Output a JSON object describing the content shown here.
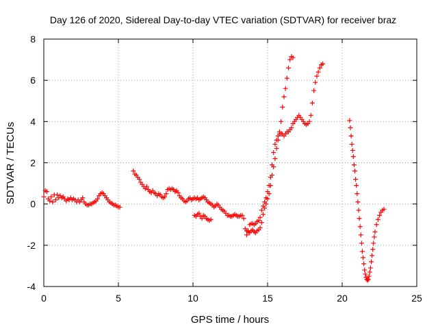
{
  "chart_data": {
    "type": "scatter",
    "title": "Day 126 of 2020, Sidereal Day-to-day VTEC variation (SDTVAR) for receiver braz",
    "xlabel": "GPS time / hours",
    "ylabel": "SDTVAR / TECUs",
    "xlim": [
      0,
      25
    ],
    "ylim": [
      -4,
      8
    ],
    "x_ticks": [
      0,
      5,
      10,
      15,
      20,
      25
    ],
    "y_ticks": [
      -4,
      -2,
      0,
      2,
      4,
      6,
      8
    ],
    "grid": true,
    "marker": "plus",
    "color": "#ff0000",
    "series": [
      {
        "name": "segment-1",
        "points": [
          [
            0.0,
            0.35
          ],
          [
            0.1,
            0.65
          ],
          [
            0.2,
            0.6
          ],
          [
            0.3,
            0.25
          ],
          [
            0.4,
            0.15
          ],
          [
            0.5,
            0.35
          ],
          [
            0.6,
            0.1
          ],
          [
            0.7,
            0.45
          ],
          [
            0.8,
            0.2
          ],
          [
            0.9,
            0.45
          ],
          [
            1.0,
            0.3
          ],
          [
            1.1,
            0.4
          ],
          [
            1.2,
            0.3
          ],
          [
            1.3,
            0.35
          ],
          [
            1.4,
            0.25
          ],
          [
            1.5,
            0.15
          ],
          [
            1.6,
            0.25
          ],
          [
            1.7,
            0.2
          ],
          [
            1.8,
            0.3
          ],
          [
            1.9,
            0.2
          ],
          [
            2.0,
            0.25
          ],
          [
            2.1,
            0.2
          ],
          [
            2.2,
            0.1
          ],
          [
            2.3,
            0.2
          ],
          [
            2.4,
            0.1
          ],
          [
            2.5,
            0.2
          ],
          [
            2.6,
            0.3
          ],
          [
            2.7,
            0.1
          ],
          [
            2.8,
            0.0
          ],
          [
            2.9,
            -0.05
          ],
          [
            3.0,
            -0.05
          ],
          [
            3.1,
            0.0
          ],
          [
            3.2,
            0.0
          ],
          [
            3.3,
            0.05
          ],
          [
            3.4,
            0.1
          ],
          [
            3.5,
            0.15
          ],
          [
            3.6,
            0.25
          ],
          [
            3.7,
            0.4
          ],
          [
            3.8,
            0.5
          ],
          [
            3.9,
            0.55
          ],
          [
            4.0,
            0.5
          ],
          [
            4.1,
            0.4
          ],
          [
            4.2,
            0.3
          ],
          [
            4.3,
            0.2
          ],
          [
            4.4,
            0.1
          ],
          [
            4.5,
            0.05
          ],
          [
            4.6,
            0.0
          ],
          [
            4.7,
            -0.05
          ],
          [
            4.8,
            -0.05
          ],
          [
            4.9,
            -0.1
          ],
          [
            5.0,
            -0.15
          ],
          [
            5.1,
            -0.15
          ]
        ]
      },
      {
        "name": "segment-2",
        "points": [
          [
            6.0,
            1.6
          ],
          [
            6.1,
            1.45
          ],
          [
            6.2,
            1.4
          ],
          [
            6.3,
            1.3
          ],
          [
            6.4,
            1.2
          ],
          [
            6.5,
            1.05
          ],
          [
            6.6,
            0.95
          ],
          [
            6.7,
            0.85
          ],
          [
            6.8,
            0.75
          ],
          [
            6.9,
            0.85
          ],
          [
            7.0,
            0.7
          ],
          [
            7.1,
            0.6
          ],
          [
            7.2,
            0.55
          ],
          [
            7.3,
            0.65
          ],
          [
            7.4,
            0.55
          ],
          [
            7.5,
            0.5
          ],
          [
            7.6,
            0.4
          ],
          [
            7.7,
            0.5
          ],
          [
            7.8,
            0.45
          ],
          [
            7.9,
            0.35
          ],
          [
            8.0,
            0.3
          ],
          [
            8.1,
            0.35
          ],
          [
            8.2,
            0.5
          ],
          [
            8.3,
            0.7
          ],
          [
            8.4,
            0.75
          ],
          [
            8.5,
            0.7
          ],
          [
            8.6,
            0.75
          ],
          [
            8.7,
            0.7
          ],
          [
            8.8,
            0.6
          ],
          [
            8.9,
            0.65
          ],
          [
            9.0,
            0.55
          ],
          [
            9.1,
            0.4
          ],
          [
            9.2,
            0.3
          ],
          [
            9.3,
            0.25
          ],
          [
            9.4,
            0.15
          ],
          [
            9.5,
            0.1
          ],
          [
            9.6,
            0.15
          ],
          [
            9.7,
            0.25
          ],
          [
            9.8,
            0.3
          ],
          [
            9.9,
            0.2
          ],
          [
            10.0,
            0.25
          ],
          [
            10.1,
            0.3
          ],
          [
            10.2,
            0.25
          ],
          [
            10.3,
            0.3
          ],
          [
            10.4,
            0.2
          ],
          [
            10.5,
            0.25
          ],
          [
            10.6,
            0.3
          ],
          [
            10.7,
            0.35
          ],
          [
            10.8,
            0.3
          ],
          [
            10.9,
            0.2
          ],
          [
            11.0,
            0.1
          ],
          [
            11.1,
            0.05
          ],
          [
            11.2,
            0.0
          ],
          [
            11.3,
            -0.05
          ],
          [
            11.4,
            -0.15
          ],
          [
            11.5,
            -0.1
          ],
          [
            11.6,
            0.0
          ],
          [
            11.7,
            -0.05
          ],
          [
            11.8,
            -0.15
          ],
          [
            11.9,
            -0.25
          ],
          [
            12.0,
            -0.3
          ],
          [
            12.1,
            -0.35
          ],
          [
            12.2,
            -0.45
          ],
          [
            12.3,
            -0.55
          ],
          [
            12.4,
            -0.55
          ],
          [
            12.5,
            -0.6
          ],
          [
            12.6,
            -0.6
          ],
          [
            12.7,
            -0.55
          ],
          [
            12.8,
            -0.5
          ],
          [
            12.9,
            -0.55
          ],
          [
            13.0,
            -0.6
          ],
          [
            13.1,
            -0.6
          ],
          [
            13.2,
            -0.55
          ],
          [
            13.3,
            -0.55
          ],
          [
            13.4,
            -0.7
          ],
          [
            13.5,
            -1.2
          ],
          [
            13.6,
            -1.5
          ],
          [
            13.7,
            -1.3
          ],
          [
            13.8,
            -1.0
          ],
          [
            13.9,
            -0.95
          ],
          [
            14.0,
            -0.95
          ],
          [
            14.1,
            -1.0
          ],
          [
            14.2,
            -0.95
          ],
          [
            14.3,
            -0.85
          ],
          [
            14.4,
            -0.8
          ],
          [
            14.5,
            -0.65
          ],
          [
            14.6,
            -0.3
          ],
          [
            14.7,
            -0.1
          ],
          [
            14.8,
            0.1
          ],
          [
            14.9,
            0.3
          ],
          [
            15.0,
            0.6
          ],
          [
            15.1,
            0.9
          ],
          [
            15.2,
            1.3
          ],
          [
            15.3,
            1.9
          ],
          [
            15.4,
            2.5
          ],
          [
            15.5,
            2.9
          ],
          [
            15.6,
            3.1
          ],
          [
            15.7,
            3.3
          ],
          [
            15.8,
            3.4
          ],
          [
            15.9,
            3.4
          ],
          [
            16.0,
            3.4
          ],
          [
            16.1,
            3.3
          ],
          [
            16.2,
            3.4
          ],
          [
            16.3,
            3.5
          ],
          [
            16.4,
            3.5
          ],
          [
            16.5,
            3.6
          ],
          [
            16.6,
            3.7
          ],
          [
            16.7,
            3.9
          ],
          [
            16.8,
            4.0
          ],
          [
            16.9,
            4.1
          ],
          [
            17.0,
            4.2
          ],
          [
            17.1,
            4.3
          ],
          [
            17.2,
            4.2
          ],
          [
            17.3,
            4.1
          ],
          [
            17.4,
            4.0
          ],
          [
            17.5,
            3.9
          ],
          [
            17.6,
            3.85
          ],
          [
            17.7,
            3.9
          ],
          [
            17.8,
            4.0
          ],
          [
            17.9,
            4.3
          ],
          [
            18.0,
            4.9
          ],
          [
            18.1,
            5.5
          ],
          [
            18.2,
            5.9
          ],
          [
            18.3,
            6.2
          ],
          [
            18.4,
            6.4
          ],
          [
            18.5,
            6.6
          ],
          [
            18.6,
            6.75
          ],
          [
            18.7,
            6.8
          ]
        ]
      },
      {
        "name": "segment-3",
        "points": [
          [
            10.1,
            -0.55
          ],
          [
            10.2,
            -0.6
          ],
          [
            10.3,
            -0.5
          ],
          [
            10.4,
            -0.45
          ],
          [
            10.5,
            -0.6
          ],
          [
            10.6,
            -0.7
          ],
          [
            10.7,
            -0.55
          ],
          [
            10.8,
            -0.6
          ],
          [
            10.9,
            -0.7
          ],
          [
            11.0,
            -0.75
          ],
          [
            11.1,
            -0.8
          ],
          [
            11.2,
            -0.75
          ]
        ]
      },
      {
        "name": "segment-4",
        "points": [
          [
            13.6,
            -1.3
          ],
          [
            13.7,
            -1.35
          ],
          [
            13.8,
            -1.4
          ],
          [
            13.9,
            -1.3
          ],
          [
            14.0,
            -1.25
          ],
          [
            14.1,
            -1.35
          ],
          [
            14.2,
            -1.4
          ],
          [
            14.3,
            -1.3
          ],
          [
            14.4,
            -1.25
          ],
          [
            14.5,
            -1.15
          ],
          [
            14.6,
            -0.9
          ],
          [
            14.7,
            -0.5
          ],
          [
            14.8,
            -0.2
          ],
          [
            14.9,
            0.0
          ],
          [
            15.0,
            0.25
          ],
          [
            15.1,
            0.5
          ],
          [
            15.2,
            0.9
          ],
          [
            15.3,
            1.4
          ],
          [
            15.4,
            1.8
          ],
          [
            15.5,
            2.2
          ],
          [
            15.6,
            2.7
          ],
          [
            15.7,
            3.1
          ],
          [
            15.8,
            3.5
          ],
          [
            15.9,
            4.0
          ],
          [
            16.0,
            4.7
          ],
          [
            16.1,
            5.2
          ],
          [
            16.2,
            5.6
          ],
          [
            16.3,
            6.1
          ],
          [
            16.4,
            6.6
          ],
          [
            16.5,
            7.0
          ],
          [
            16.6,
            7.15
          ],
          [
            16.7,
            7.1
          ]
        ]
      },
      {
        "name": "segment-5",
        "points": [
          [
            20.5,
            4.05
          ],
          [
            20.55,
            3.7
          ],
          [
            20.6,
            3.3
          ],
          [
            20.65,
            2.9
          ],
          [
            20.7,
            2.6
          ],
          [
            20.75,
            2.3
          ],
          [
            20.8,
            1.9
          ],
          [
            20.85,
            1.6
          ],
          [
            20.9,
            1.2
          ],
          [
            20.95,
            0.9
          ],
          [
            21.0,
            0.5
          ],
          [
            21.05,
            0.1
          ],
          [
            21.1,
            -0.3
          ],
          [
            21.15,
            -0.7
          ],
          [
            21.2,
            -1.1
          ],
          [
            21.25,
            -1.5
          ],
          [
            21.3,
            -1.9
          ],
          [
            21.35,
            -2.3
          ],
          [
            21.4,
            -2.6
          ],
          [
            21.45,
            -2.9
          ],
          [
            21.5,
            -3.2
          ],
          [
            21.55,
            -3.4
          ],
          [
            21.6,
            -3.55
          ],
          [
            21.65,
            -3.65
          ],
          [
            21.7,
            -3.7
          ],
          [
            21.75,
            -3.65
          ],
          [
            21.8,
            -3.5
          ],
          [
            21.85,
            -3.3
          ],
          [
            21.9,
            -3.1
          ],
          [
            21.95,
            -2.8
          ],
          [
            22.0,
            -2.5
          ],
          [
            22.05,
            -2.2
          ],
          [
            22.1,
            -1.9
          ],
          [
            22.15,
            -1.6
          ],
          [
            22.2,
            -1.35
          ],
          [
            22.3,
            -1.0
          ],
          [
            22.4,
            -0.75
          ],
          [
            22.5,
            -0.55
          ],
          [
            22.6,
            -0.4
          ],
          [
            22.7,
            -0.3
          ],
          [
            22.8,
            -0.25
          ]
        ]
      }
    ]
  }
}
